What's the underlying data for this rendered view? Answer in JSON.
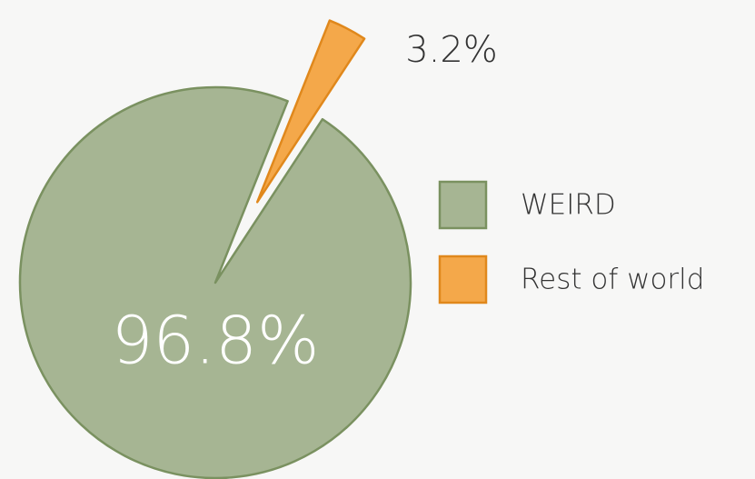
{
  "chart_data": {
    "type": "pie",
    "categories": [
      "WEIRD",
      "Rest of world"
    ],
    "values": [
      96.8,
      3.2
    ],
    "value_labels": [
      "96.8%",
      "3.2%"
    ],
    "colors": [
      "#a6b593",
      "#f4a84a"
    ],
    "legend": "right"
  }
}
